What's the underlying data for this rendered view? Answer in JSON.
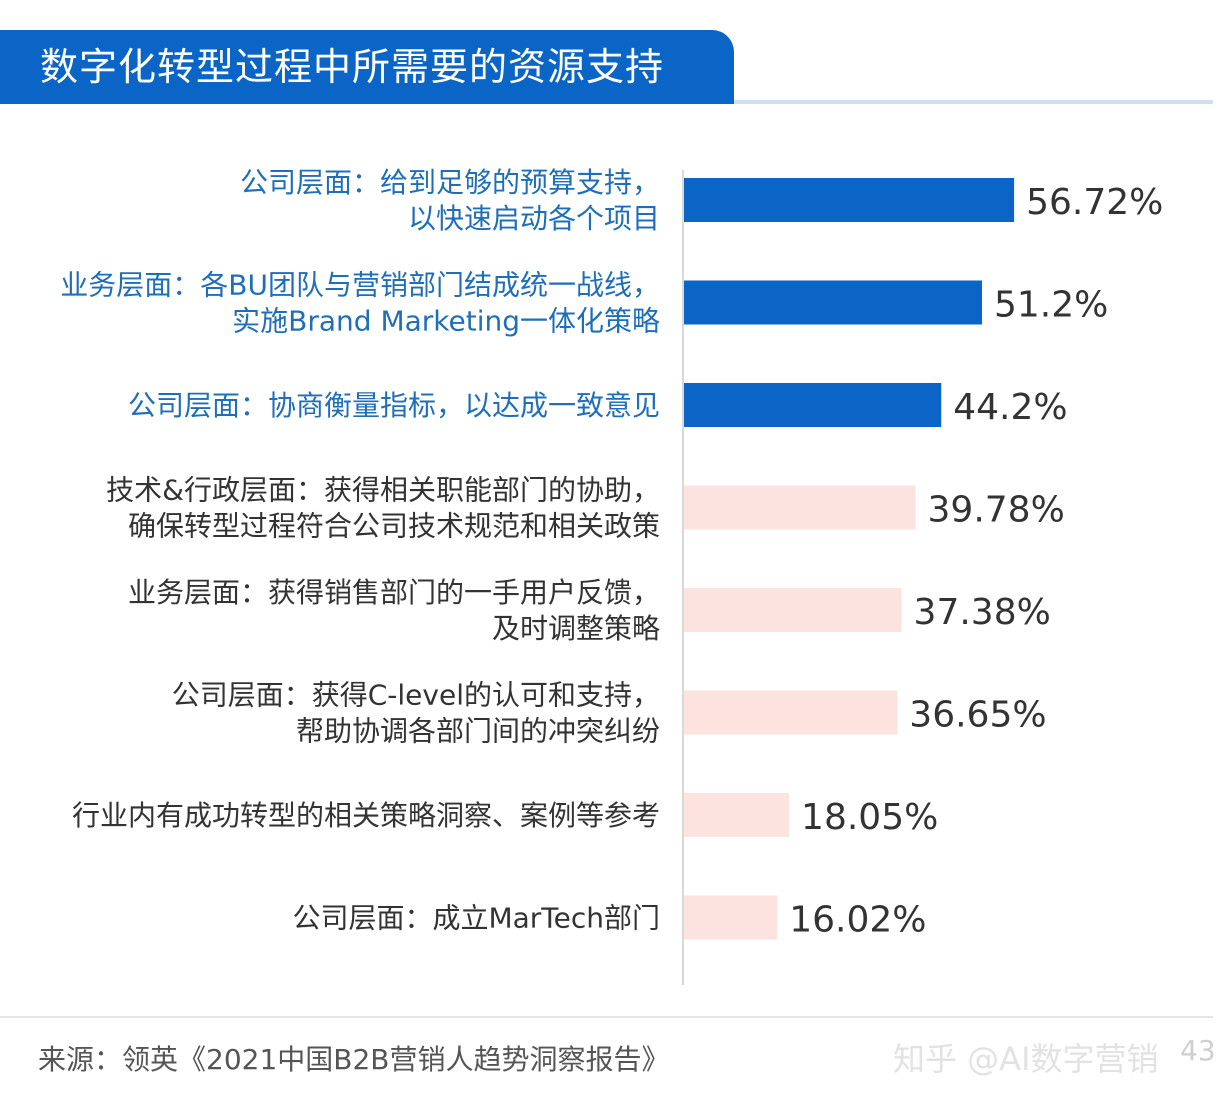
{
  "chart_data": {
    "type": "bar",
    "orientation": "horizontal",
    "title": "数字化转型过程中所需要的资源支持",
    "categories": [
      [
        "公司层面：给到足够的预算支持，",
        "以快速启动各个项目"
      ],
      [
        "业务层面：各BU团队与营销部门结成统一战线，",
        "实施Brand Marketing一体化策略"
      ],
      [
        "公司层面：协商衡量指标，以达成一致意见"
      ],
      [
        "技术&行政层面：获得相关职能部门的协助，",
        "确保转型过程符合公司技术规范和相关政策"
      ],
      [
        "业务层面：获得销售部门的一手用户反馈，",
        "及时调整策略"
      ],
      [
        "公司层面：获得C-level的认可和支持，",
        "帮助协调各部门间的冲突纠纷"
      ],
      [
        "行业内有成功转型的相关策略洞察、案例等参考"
      ],
      [
        "公司层面：成立MarTech部门"
      ]
    ],
    "values": [
      56.72,
      51.2,
      44.2,
      39.78,
      37.38,
      36.65,
      18.05,
      16.02
    ],
    "value_labels": [
      "56.72%",
      "51.2%",
      "44.2%",
      "39.78%",
      "37.38%",
      "36.65%",
      "18.05%",
      "16.02%"
    ],
    "highlighted": [
      true,
      true,
      true,
      false,
      false,
      false,
      false,
      false
    ],
    "xlim": [
      0,
      100
    ],
    "grid": false,
    "colors": {
      "highlight_bar": "#0a65c7",
      "highlight_label": "#1f6fb8",
      "normal_bar": "#fde3df",
      "normal_label": "#333333",
      "value_label": "#333333"
    }
  },
  "header": {
    "title": "数字化转型过程中所需要的资源支持"
  },
  "footer": {
    "source": "来源：领英《2021中国B2B营销人趋势洞察报告》",
    "watermark": "知乎 @AI数字营销",
    "page_number": "43"
  }
}
